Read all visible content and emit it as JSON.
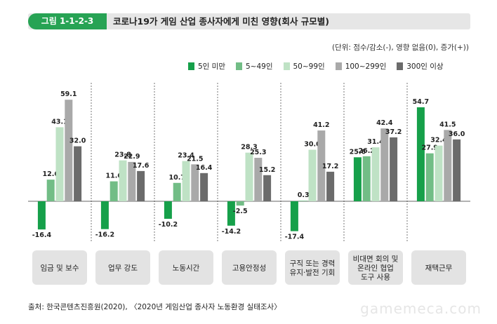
{
  "header": {
    "figure_label": "그림 1-1-2-3",
    "title": "코로나19가 게임 산업 종사자에게 미친 영향(회사 규모별)"
  },
  "unit_note": "(단위: 점수/감소(-), 영향 없음(0), 증가(+))",
  "source": "출처: 한국콘텐츠진흥원(2020), 〈2020년 게임산업 종사자 노동환경 실태조사〉",
  "watermark": "gamemeca.com",
  "colors": {
    "title_green": "#27a354",
    "series": [
      "#16a04a",
      "#72bd86",
      "#bfe2c5",
      "#a9a9a9",
      "#6b6b6b"
    ],
    "category_box": "#e3e3e3"
  },
  "chart_data": {
    "type": "bar",
    "title": "코로나19가 게임 산업 종사자에게 미친 영향(회사 규모별)",
    "categories": [
      "임금 및 보수",
      "업무 강도",
      "노동시간",
      "고용안정성",
      "구직 또는 경력 유지·발전 기회",
      "비대면 회의 및 온라인 협업 도구 사용",
      "재택근무"
    ],
    "category_lines": [
      [
        "임금 및 보수"
      ],
      [
        "업무 강도"
      ],
      [
        "노동시간"
      ],
      [
        "고용안정성"
      ],
      [
        "구직 또는 경력",
        "유지·발전 기회"
      ],
      [
        "비대면 회의 및",
        "온라인 협업",
        "도구 사용"
      ],
      [
        "재택근무"
      ]
    ],
    "series": [
      {
        "name": "5인 미만",
        "values": [
          -16.4,
          -16.2,
          -10.2,
          -14.2,
          -17.4,
          25.6,
          54.7
        ],
        "labels": [
          "-16.4",
          "-16.2",
          "-10.2",
          "-14.2",
          "-17.4",
          "25.6",
          "54.7"
        ]
      },
      {
        "name": "5~49인",
        "values": [
          12.6,
          11.6,
          10.7,
          -2.5,
          0.3,
          26.2,
          27.9
        ],
        "labels": [
          "12.6",
          "11.6",
          "10.7",
          "-2.5",
          "0.3",
          "26.2",
          "27.9"
        ]
      },
      {
        "name": "50~99인",
        "values": [
          43.1,
          23.8,
          23.4,
          28.3,
          30.0,
          31.4,
          32.4
        ],
        "labels": [
          "43.1",
          "23.8",
          "23.4",
          "28.3",
          "30.0",
          "31.4",
          "32.4"
        ]
      },
      {
        "name": "100~299인",
        "values": [
          59.1,
          22.9,
          21.5,
          25.3,
          41.2,
          42.4,
          41.5
        ],
        "labels": [
          "59.1",
          "22.9",
          "21.5",
          "25.3",
          "41.2",
          "42.4",
          "41.5"
        ]
      },
      {
        "name": "300인 이상",
        "values": [
          32.0,
          17.6,
          16.4,
          15.2,
          17.2,
          37.2,
          36.0
        ],
        "labels": [
          "32.0",
          "17.6",
          "16.4",
          "15.2",
          "17.2",
          "37.2",
          "36.0"
        ]
      }
    ],
    "ylim": [
      -20,
      65
    ],
    "legend_position": "top-right",
    "grid": false
  }
}
